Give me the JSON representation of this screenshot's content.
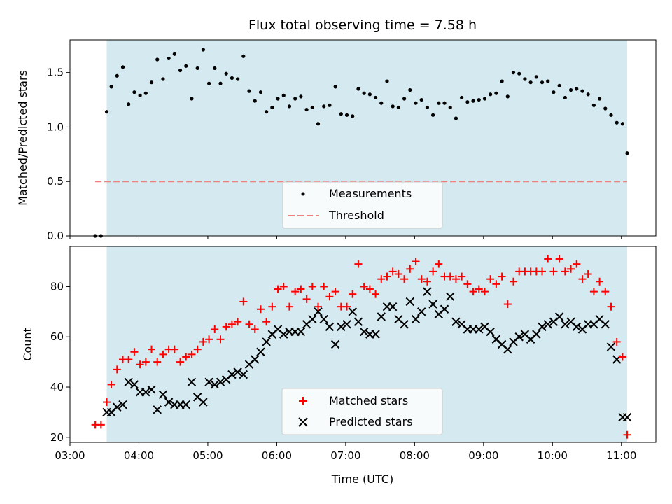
{
  "chart_data": [
    {
      "type": "scatter",
      "title": "Flux total observing time = 7.58 h",
      "ylabel": "Matched/Predicted stars",
      "xlabel": "",
      "ylim": [
        0,
        1.8
      ],
      "xlim": [
        "03:00",
        "11:30"
      ],
      "x_ticks": [
        "03:00",
        "04:00",
        "05:00",
        "06:00",
        "07:00",
        "08:00",
        "09:00",
        "10:00",
        "11:00"
      ],
      "y_ticks": [
        "0.0",
        "0.5",
        "1.0",
        "1.5"
      ],
      "observing_window": [
        "03:32",
        "11:05"
      ],
      "legend_position": "lower center",
      "colors": {
        "measurements": "#000000",
        "threshold": "#f07f7f",
        "window": "#d4eaf0"
      },
      "series": [
        {
          "name": "Measurements",
          "style": "dots",
          "times": [
            "03:22",
            "03:27",
            "03:32",
            "03:36",
            "03:41",
            "03:46",
            "03:51",
            "03:56",
            "04:01",
            "04:06",
            "04:11",
            "04:16",
            "04:21",
            "04:26",
            "04:31",
            "04:36",
            "04:41",
            "04:46",
            "04:51",
            "04:56",
            "05:01",
            "05:06",
            "05:11",
            "05:16",
            "05:21",
            "05:26",
            "05:31",
            "05:36",
            "05:41",
            "05:46",
            "05:51",
            "05:56",
            "06:01",
            "06:06",
            "06:11",
            "06:16",
            "06:21",
            "06:26",
            "06:31",
            "06:36",
            "06:41",
            "06:46",
            "06:51",
            "06:56",
            "07:01",
            "07:06",
            "07:11",
            "07:16",
            "07:21",
            "07:26",
            "07:31",
            "07:36",
            "07:41",
            "07:46",
            "07:51",
            "07:56",
            "08:01",
            "08:06",
            "08:11",
            "08:16",
            "08:21",
            "08:26",
            "08:31",
            "08:36",
            "08:41",
            "08:46",
            "08:51",
            "08:56",
            "09:01",
            "09:06",
            "09:11",
            "09:16",
            "09:21",
            "09:26",
            "09:31",
            "09:36",
            "09:41",
            "09:46",
            "09:51",
            "09:56",
            "10:01",
            "10:06",
            "10:11",
            "10:16",
            "10:21",
            "10:26",
            "10:31",
            "10:36",
            "10:41",
            "10:46",
            "10:51",
            "10:56",
            "11:01",
            "11:05"
          ],
          "values": [
            0.0,
            0.0,
            1.14,
            1.37,
            1.47,
            1.55,
            1.21,
            1.32,
            1.29,
            1.31,
            1.41,
            1.62,
            1.44,
            1.63,
            1.67,
            1.52,
            1.56,
            1.26,
            1.54,
            1.71,
            1.4,
            1.54,
            1.4,
            1.49,
            1.45,
            1.44,
            1.65,
            1.33,
            1.24,
            1.32,
            1.14,
            1.18,
            1.26,
            1.29,
            1.19,
            1.26,
            1.28,
            1.16,
            1.18,
            1.03,
            1.19,
            1.2,
            1.37,
            1.12,
            1.11,
            1.1,
            1.35,
            1.31,
            1.3,
            1.27,
            1.22,
            1.42,
            1.19,
            1.18,
            1.26,
            1.34,
            1.22,
            1.25,
            1.18,
            1.11,
            1.22,
            1.22,
            1.18,
            1.08,
            1.27,
            1.23,
            1.24,
            1.25,
            1.26,
            1.3,
            1.31,
            1.42,
            1.28,
            1.5,
            1.49,
            1.44,
            1.41,
            1.46,
            1.41,
            1.42,
            1.32,
            1.38,
            1.27,
            1.34,
            1.35,
            1.33,
            1.3,
            1.2,
            1.26,
            1.17,
            1.11,
            1.04,
            1.03,
            0.76
          ]
        },
        {
          "name": "Threshold",
          "style": "dashed-line",
          "times": [
            "03:22",
            "11:05"
          ],
          "values": [
            0.5,
            0.5
          ]
        }
      ]
    },
    {
      "type": "scatter",
      "title": "",
      "ylabel": "Count",
      "xlabel": "Time (UTC)",
      "ylim": [
        18,
        96
      ],
      "xlim": [
        "03:00",
        "11:30"
      ],
      "x_ticks": [
        "03:00",
        "04:00",
        "05:00",
        "06:00",
        "07:00",
        "08:00",
        "09:00",
        "10:00",
        "11:00"
      ],
      "y_ticks": [
        "20",
        "40",
        "60",
        "80"
      ],
      "observing_window": [
        "03:32",
        "11:05"
      ],
      "legend_position": "lower center",
      "colors": {
        "matched": "#ff0000",
        "predicted": "#000000",
        "window": "#d4eaf0"
      },
      "series": [
        {
          "name": "Matched stars",
          "marker": "plus",
          "times": [
            "03:22",
            "03:27",
            "03:32",
            "03:36",
            "03:41",
            "03:46",
            "03:51",
            "03:56",
            "04:01",
            "04:06",
            "04:11",
            "04:16",
            "04:21",
            "04:26",
            "04:31",
            "04:36",
            "04:41",
            "04:46",
            "04:51",
            "04:56",
            "05:01",
            "05:06",
            "05:11",
            "05:16",
            "05:21",
            "05:26",
            "05:31",
            "05:36",
            "05:41",
            "05:46",
            "05:51",
            "05:56",
            "06:01",
            "06:06",
            "06:11",
            "06:16",
            "06:21",
            "06:26",
            "06:31",
            "06:36",
            "06:41",
            "06:46",
            "06:51",
            "06:56",
            "07:01",
            "07:06",
            "07:11",
            "07:16",
            "07:21",
            "07:26",
            "07:31",
            "07:36",
            "07:41",
            "07:46",
            "07:51",
            "07:56",
            "08:01",
            "08:06",
            "08:11",
            "08:16",
            "08:21",
            "08:26",
            "08:31",
            "08:36",
            "08:41",
            "08:46",
            "08:51",
            "08:56",
            "09:01",
            "09:06",
            "09:11",
            "09:16",
            "09:21",
            "09:26",
            "09:31",
            "09:36",
            "09:41",
            "09:46",
            "09:51",
            "09:56",
            "10:01",
            "10:06",
            "10:11",
            "10:16",
            "10:21",
            "10:26",
            "10:31",
            "10:36",
            "10:41",
            "10:46",
            "10:51",
            "10:56",
            "11:01",
            "11:05"
          ],
          "values": [
            25,
            25,
            34,
            41,
            47,
            51,
            51,
            54,
            49,
            50,
            55,
            50,
            53,
            55,
            55,
            50,
            52,
            53,
            55,
            58,
            59,
            63,
            59,
            64,
            65,
            66,
            74,
            65,
            63,
            71,
            66,
            72,
            79,
            80,
            72,
            78,
            79,
            75,
            80,
            72,
            80,
            76,
            78,
            72,
            72,
            77,
            89,
            80,
            79,
            77,
            83,
            84,
            86,
            85,
            83,
            87,
            90,
            83,
            82,
            86,
            89,
            84,
            84,
            83,
            84,
            81,
            78,
            79,
            78,
            83,
            81,
            84,
            73,
            82,
            86,
            86,
            86,
            86,
            86,
            91,
            86,
            91,
            86,
            87,
            89,
            83,
            85,
            78,
            82,
            78,
            72,
            58,
            52,
            21
          ]
        },
        {
          "name": "Predicted stars",
          "marker": "x",
          "times": [
            "03:32",
            "03:36",
            "03:41",
            "03:46",
            "03:51",
            "03:56",
            "04:01",
            "04:06",
            "04:11",
            "04:16",
            "04:21",
            "04:26",
            "04:31",
            "04:36",
            "04:41",
            "04:46",
            "04:51",
            "04:56",
            "05:01",
            "05:06",
            "05:11",
            "05:16",
            "05:21",
            "05:26",
            "05:31",
            "05:36",
            "05:41",
            "05:46",
            "05:51",
            "05:56",
            "06:01",
            "06:06",
            "06:11",
            "06:16",
            "06:21",
            "06:26",
            "06:31",
            "06:36",
            "06:41",
            "06:46",
            "06:51",
            "06:56",
            "07:01",
            "07:06",
            "07:11",
            "07:16",
            "07:21",
            "07:26",
            "07:31",
            "07:36",
            "07:41",
            "07:46",
            "07:51",
            "07:56",
            "08:01",
            "08:06",
            "08:11",
            "08:16",
            "08:21",
            "08:26",
            "08:31",
            "08:36",
            "08:41",
            "08:46",
            "08:51",
            "08:56",
            "09:01",
            "09:06",
            "09:11",
            "09:16",
            "09:21",
            "09:26",
            "09:31",
            "09:36",
            "09:41",
            "09:46",
            "09:51",
            "09:56",
            "10:01",
            "10:06",
            "10:11",
            "10:16",
            "10:21",
            "10:26",
            "10:31",
            "10:36",
            "10:41",
            "10:46",
            "10:51",
            "10:56",
            "11:01",
            "11:05"
          ],
          "values": [
            30,
            30,
            32,
            33,
            42,
            41,
            38,
            38,
            39,
            31,
            37,
            34,
            33,
            33,
            33,
            42,
            36,
            34,
            42,
            41,
            42,
            43,
            45,
            46,
            45,
            49,
            51,
            54,
            58,
            61,
            63,
            61,
            62,
            62,
            62,
            65,
            67,
            70,
            67,
            64,
            57,
            64,
            65,
            70,
            66,
            62,
            61,
            61,
            68,
            72,
            72,
            67,
            65,
            74,
            67,
            70,
            78,
            73,
            69,
            71,
            76,
            66,
            65,
            63,
            63,
            63,
            64,
            62,
            59,
            57,
            55,
            58,
            60,
            61,
            59,
            61,
            64,
            65,
            66,
            68,
            65,
            66,
            64,
            63,
            65,
            65,
            67,
            65,
            56,
            51,
            28,
            28
          ]
        }
      ]
    }
  ]
}
